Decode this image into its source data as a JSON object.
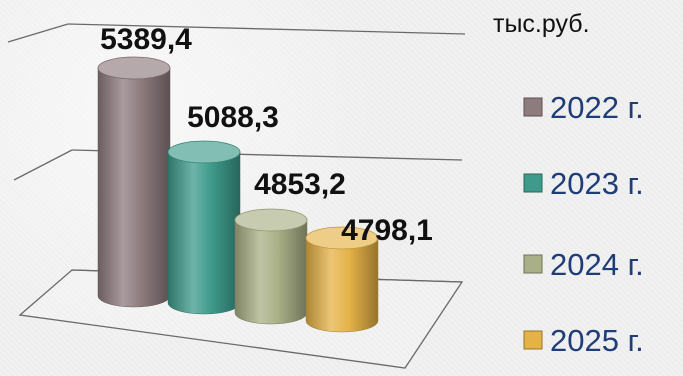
{
  "chart_data": {
    "type": "bar",
    "style": "3d-cylinder",
    "unit": "тыс.руб.",
    "categories": [
      "2022 г.",
      "2023 г.",
      "2024 г.",
      "2025 г."
    ],
    "values": [
      5389.4,
      5088.3,
      4853.2,
      4798.1
    ],
    "value_labels": [
      "5389,4",
      "5088,3",
      "4853,2",
      "4798,1"
    ],
    "colors": [
      "#8e7b7e",
      "#3e9b8c",
      "#a9b087",
      "#e5b247"
    ],
    "legend": {
      "placement": "right",
      "items": [
        {
          "label": "2022 г.",
          "color": "#8e7b7e"
        },
        {
          "label": "2023 г.",
          "color": "#3e9b8c"
        },
        {
          "label": "2024 г.",
          "color": "#a9b087"
        },
        {
          "label": "2025 г.",
          "color": "#e5b247"
        }
      ]
    },
    "grid": true
  }
}
